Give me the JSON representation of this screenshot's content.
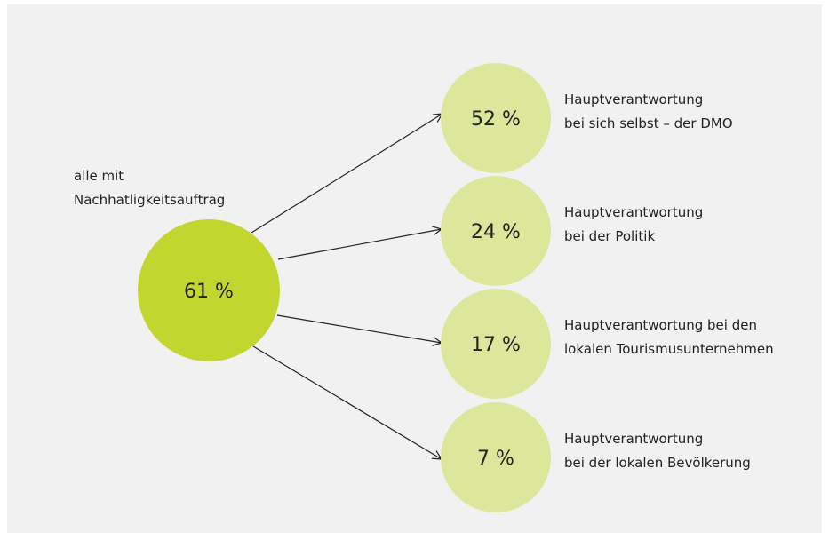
{
  "source": {
    "label": [
      "alle mit",
      "Nachhatligkeitsauftrag"
    ],
    "value": "61 %"
  },
  "targets": [
    {
      "value": "52 %",
      "label": [
        "Hauptverantwortung",
        "bei sich selbst – der DMO"
      ]
    },
    {
      "value": "24 %",
      "label": [
        "Hauptverantwortung",
        "bei der Politik"
      ]
    },
    {
      "value": "17 %",
      "label": [
        "Hauptverantwortung bei den",
        "lokalen Tourismusunternehmen"
      ]
    },
    {
      "value": "7 %",
      "label": [
        "Hauptverantwortung",
        "bei der lokalen Bevölkerung"
      ]
    }
  ]
}
